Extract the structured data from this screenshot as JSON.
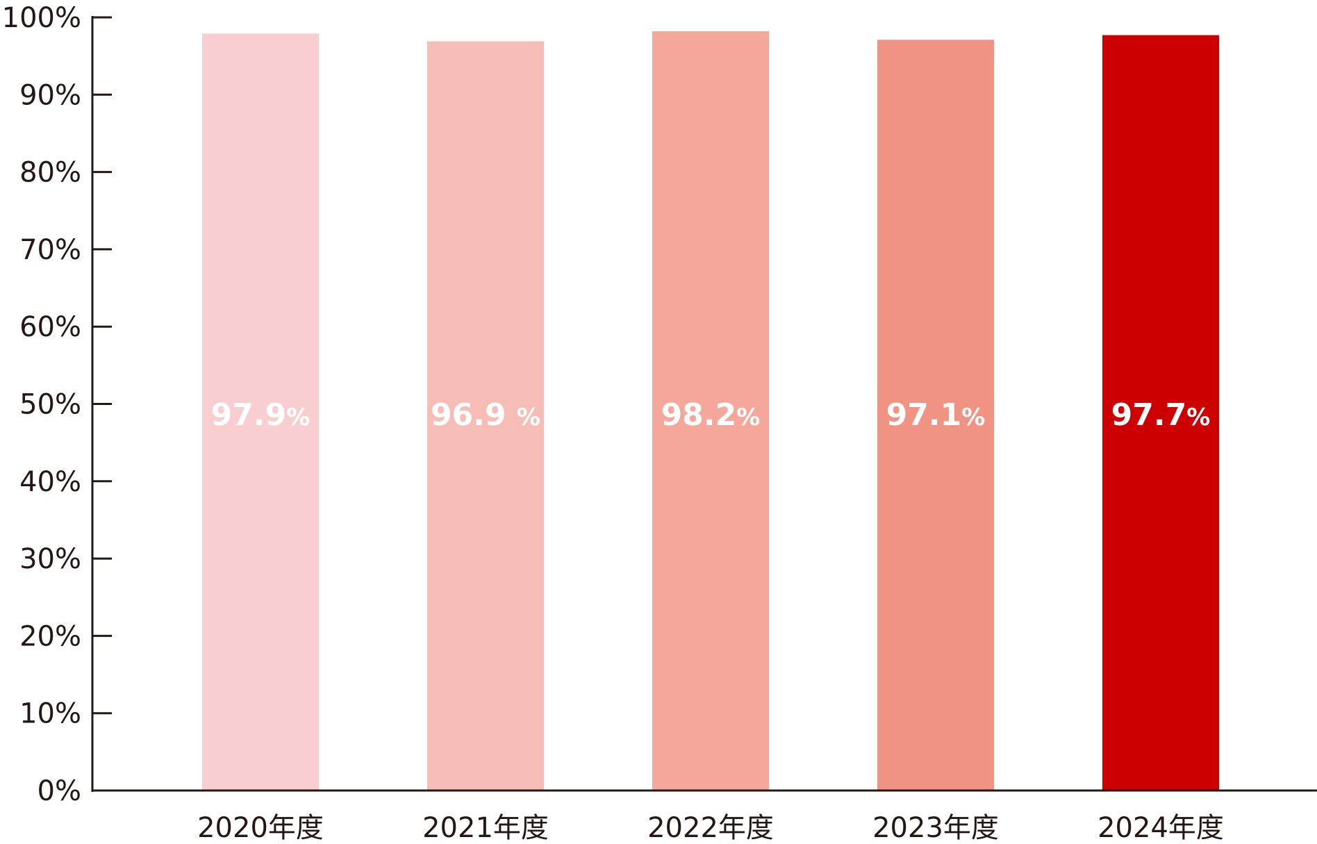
{
  "chart_data": {
    "type": "bar",
    "categories": [
      "2020年度",
      "2021年度",
      "2022年度",
      "2023年度",
      "2024年度"
    ],
    "values": [
      97.9,
      96.9,
      98.2,
      97.1,
      97.7
    ],
    "data_labels": [
      "97.9",
      "96.9 ",
      "98.2",
      "97.1",
      "97.7"
    ],
    "data_label_unit": "%",
    "colors": [
      "#f8ced0",
      "#f6bcb6",
      "#f4a79a",
      "#f09383",
      "#cc0000"
    ],
    "ylim": [
      0,
      100
    ],
    "yticks": [
      0,
      10,
      20,
      30,
      40,
      50,
      60,
      70,
      80,
      90,
      100
    ],
    "ytick_labels": [
      "0%",
      "10%",
      "20%",
      "30%",
      "40%",
      "50%",
      "60%",
      "70%",
      "80%",
      "90%",
      "100%"
    ],
    "title": "",
    "xlabel": "",
    "ylabel": "",
    "grid": false,
    "legend": "none"
  }
}
